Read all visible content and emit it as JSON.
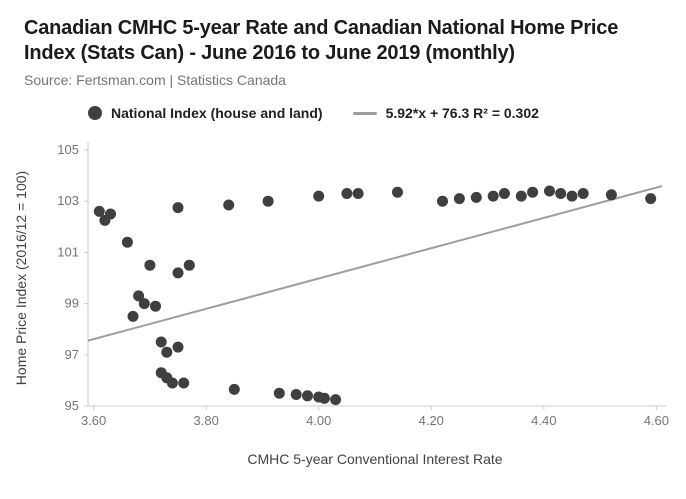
{
  "header": {
    "title": "Canadian CMHC 5-year Rate and Canadian National Home Price Index (Stats Can) - June 2016 to June 2019 (monthly)",
    "source": "Source: Fertsman.com | Statistics Canada"
  },
  "legend": {
    "series_label": "National Index (house and land)",
    "trendline_label": "5.92*x + 76.3 R² = 0.302"
  },
  "chart_data": {
    "type": "scatter",
    "title": "Canadian CMHC 5-year Rate and Canadian National Home Price Index (Stats Can) - June 2016 to June 2019 (monthly)",
    "xlabel": "CMHC 5-year Conventional Interest Rate",
    "ylabel": "Home Price Index (2016/12 = 100)",
    "xlim": [
      3.59,
      4.61
    ],
    "ylim": [
      95,
      105
    ],
    "grid": false,
    "legend_position": "top",
    "x_ticks": [
      {
        "v": 3.6,
        "label": "3.60"
      },
      {
        "v": 3.8,
        "label": "3.80"
      },
      {
        "v": 4.0,
        "label": "4.00"
      },
      {
        "v": 4.2,
        "label": "4.20"
      },
      {
        "v": 4.4,
        "label": "4.40"
      },
      {
        "v": 4.6,
        "label": "4.60"
      }
    ],
    "y_ticks": [
      {
        "v": 95,
        "label": "95"
      },
      {
        "v": 97,
        "label": "97"
      },
      {
        "v": 99,
        "label": "99"
      },
      {
        "v": 101,
        "label": "101"
      },
      {
        "v": 103,
        "label": "103"
      },
      {
        "v": 105,
        "label": "105"
      }
    ],
    "series_name": "National Index (house and land)",
    "points": [
      [
        3.61,
        102.6
      ],
      [
        3.62,
        102.25
      ],
      [
        3.63,
        102.5
      ],
      [
        3.66,
        101.4
      ],
      [
        3.7,
        100.5
      ],
      [
        3.68,
        99.3
      ],
      [
        3.69,
        99.0
      ],
      [
        3.71,
        98.9
      ],
      [
        3.67,
        98.5
      ],
      [
        3.72,
        97.5
      ],
      [
        3.75,
        97.3
      ],
      [
        3.73,
        97.1
      ],
      [
        3.72,
        96.3
      ],
      [
        3.73,
        96.1
      ],
      [
        3.74,
        95.9
      ],
      [
        3.76,
        95.9
      ],
      [
        3.75,
        100.2
      ],
      [
        3.77,
        100.5
      ],
      [
        3.75,
        102.75
      ],
      [
        3.84,
        102.85
      ],
      [
        3.85,
        95.65
      ],
      [
        3.91,
        103.0
      ],
      [
        3.93,
        95.5
      ],
      [
        3.96,
        95.45
      ],
      [
        3.98,
        95.4
      ],
      [
        4.0,
        95.35
      ],
      [
        4.01,
        95.3
      ],
      [
        4.03,
        95.25
      ],
      [
        4.0,
        103.2
      ],
      [
        4.05,
        103.3
      ],
      [
        4.07,
        103.3
      ],
      [
        4.14,
        103.35
      ],
      [
        4.22,
        103.0
      ],
      [
        4.25,
        103.1
      ],
      [
        4.28,
        103.15
      ],
      [
        4.31,
        103.2
      ],
      [
        4.33,
        103.3
      ],
      [
        4.36,
        103.2
      ],
      [
        4.38,
        103.35
      ],
      [
        4.41,
        103.4
      ],
      [
        4.43,
        103.3
      ],
      [
        4.45,
        103.2
      ],
      [
        4.47,
        103.3
      ],
      [
        4.52,
        103.25
      ],
      [
        4.59,
        103.1
      ]
    ],
    "trendline": {
      "slope": 5.92,
      "intercept": 76.3,
      "r_squared": 0.302,
      "label": "5.92*x + 76.3 R² = 0.302"
    },
    "colors": {
      "point": "#3f3f3f",
      "trend": "#9e9e9e",
      "axis": "#cccccc",
      "tick_label": "#757575",
      "axis_title": "#424242"
    }
  }
}
